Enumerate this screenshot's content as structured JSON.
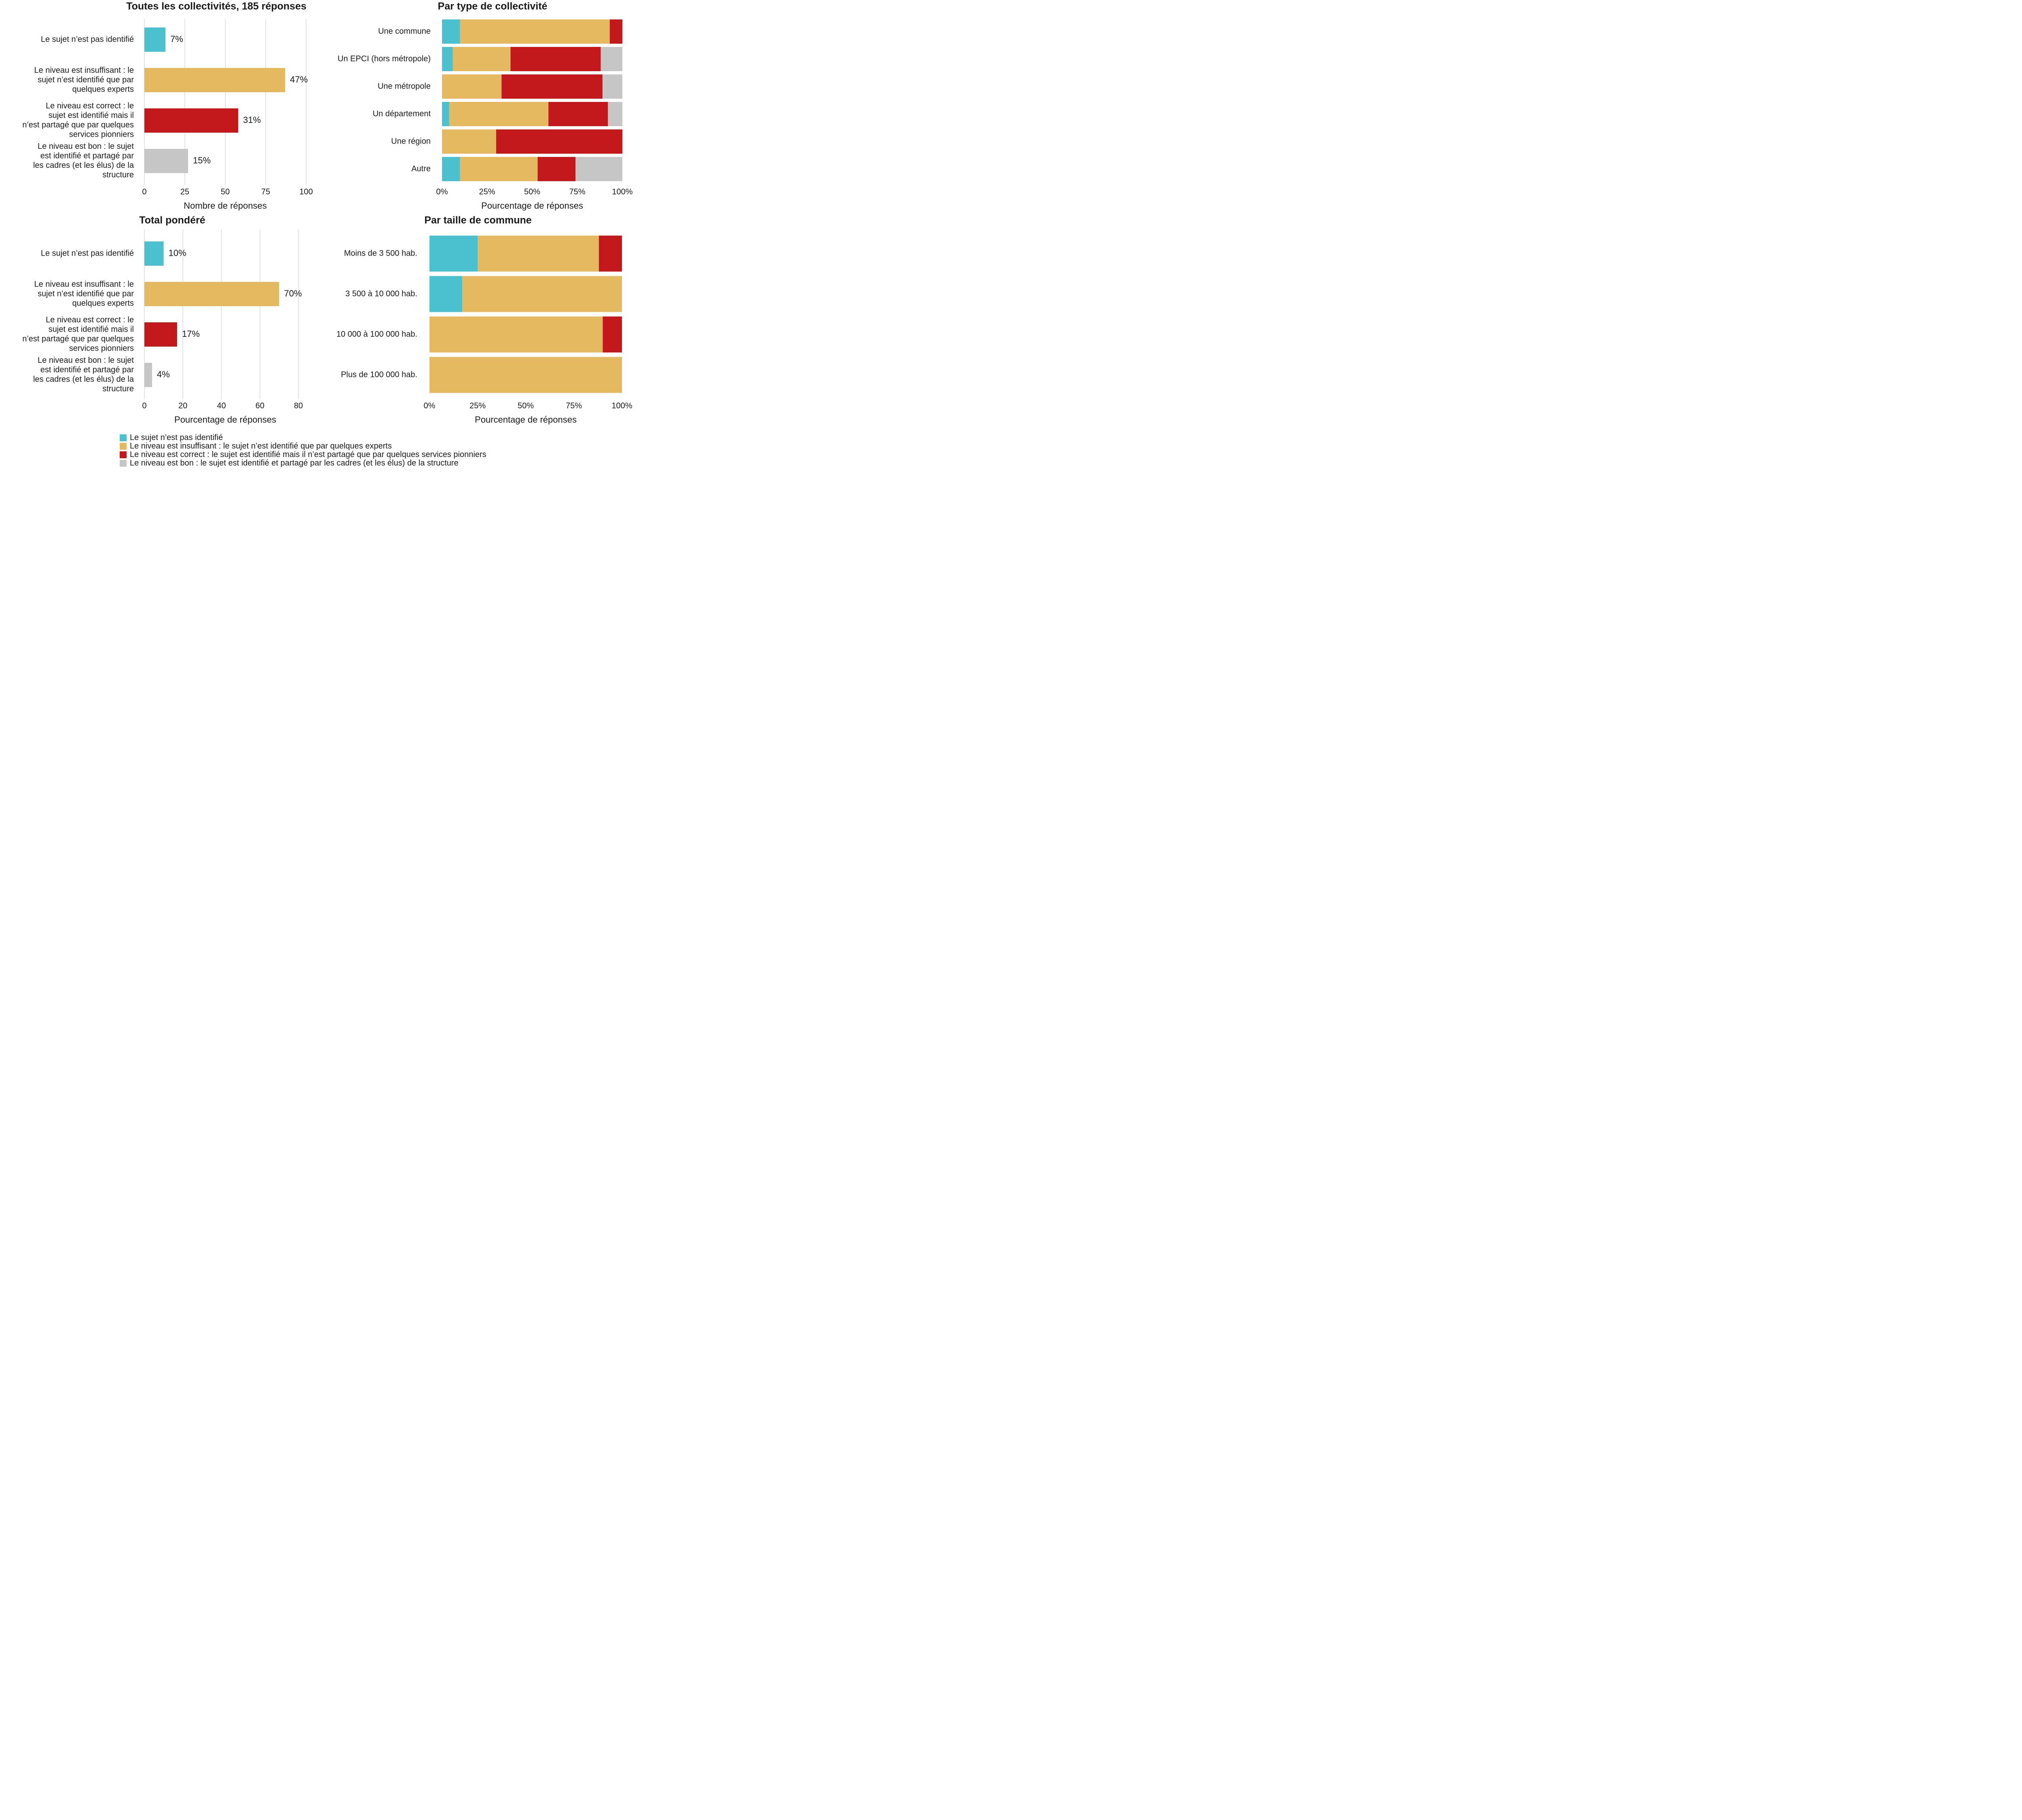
{
  "colors": {
    "pas_identifie": "#4BC1CF",
    "insuffisant": "#E4B960",
    "correct": "#C4191C",
    "bon": "#C6C6C6",
    "grid": "#d0d0d0",
    "text": "#1a1a1a"
  },
  "legend": {
    "items": [
      {
        "key": "pas_identifie",
        "label": "Le sujet n’est pas identifié"
      },
      {
        "key": "insuffisant",
        "label": "Le niveau est insuffisant : le sujet n’est identifié que par quelques experts"
      },
      {
        "key": "correct",
        "label": "Le niveau est correct : le sujet est identifié mais il n’est partagé que par quelques services pionniers"
      },
      {
        "key": "bon",
        "label": "Le niveau est bon : le sujet est identifié et partagé par les cadres (et les élus) de la structure"
      }
    ]
  },
  "chart_data": [
    {
      "id": "toutes",
      "type": "bar",
      "orientation": "horizontal",
      "title": "Toutes les collectivités, 185 réponses",
      "xlabel": "Nombre de réponses",
      "ylabel": "",
      "xlim": [
        0,
        105
      ],
      "xticks": [
        0,
        25,
        50,
        75,
        100
      ],
      "tick_labels": [
        "0",
        "25",
        "50",
        "75",
        "100"
      ],
      "grid": "vertical",
      "categories": [
        [
          "Le sujet n’est pas identifié"
        ],
        [
          "Le niveau est insuffisant : le",
          "sujet n’est identifié que par",
          "quelques experts"
        ],
        [
          "Le niveau est correct : le",
          "sujet est identifié mais il",
          "n’est partagé que par quelques",
          "services pionniers"
        ],
        [
          "Le niveau est bon : le sujet",
          "est identifié et partagé par",
          "les cadres (et les élus) de la",
          "structure"
        ]
      ],
      "keys": [
        "pas_identifie",
        "insuffisant",
        "correct",
        "bon"
      ],
      "values": [
        13,
        87,
        58,
        27
      ],
      "data_labels": [
        "7%",
        "47%",
        "31%",
        "15%"
      ]
    },
    {
      "id": "type",
      "type": "bar",
      "orientation": "horizontal",
      "stacked": true,
      "title": "Par type de collectivité",
      "xlabel": "Pourcentage de réponses",
      "ylabel": "",
      "xlim": [
        0,
        100
      ],
      "xticks": [
        0,
        25,
        50,
        75,
        100
      ],
      "tick_labels": [
        "0%",
        "25%",
        "50%",
        "75%",
        "100%"
      ],
      "grid": "none",
      "categories": [
        "Une commune",
        "Un EPCI (hors métropole)",
        "Une métropole",
        "Un département",
        "Une région",
        "Autre"
      ],
      "series": [
        {
          "name": "Le sujet n’est pas identifié",
          "key": "pas_identifie",
          "values": [
            10,
            6,
            0,
            4,
            0,
            10
          ]
        },
        {
          "name": "Le niveau est insuffisant",
          "key": "insuffisant",
          "values": [
            83,
            32,
            33,
            55,
            30,
            43
          ]
        },
        {
          "name": "Le niveau est correct",
          "key": "correct",
          "values": [
            7,
            50,
            56,
            33,
            70,
            21
          ]
        },
        {
          "name": "Le niveau est bon",
          "key": "bon",
          "values": [
            0,
            12,
            11,
            8,
            0,
            26
          ]
        }
      ]
    },
    {
      "id": "pondere",
      "type": "bar",
      "orientation": "horizontal",
      "title": "Total pondéré",
      "xlabel": "Pourcentage de réponses",
      "ylabel": "",
      "xlim": [
        0,
        84
      ],
      "xticks": [
        0,
        20,
        40,
        60,
        80
      ],
      "tick_labels": [
        "0",
        "20",
        "40",
        "60",
        "80"
      ],
      "grid": "vertical",
      "categories": [
        [
          "Le sujet n’est pas identifié"
        ],
        [
          "Le niveau est insuffisant : le",
          "sujet n’est identifié que par",
          "quelques experts"
        ],
        [
          "Le niveau est correct : le",
          "sujet est identifié mais il",
          "n’est partagé que par quelques",
          "services pionniers"
        ],
        [
          "Le niveau est bon : le sujet",
          "est identifié et partagé par",
          "les cadres (et les élus) de la",
          "structure"
        ]
      ],
      "keys": [
        "pas_identifie",
        "insuffisant",
        "correct",
        "bon"
      ],
      "values": [
        10,
        70,
        17,
        4
      ],
      "data_labels": [
        "10%",
        "70%",
        "17%",
        "4%"
      ]
    },
    {
      "id": "taille",
      "type": "bar",
      "orientation": "horizontal",
      "stacked": true,
      "title": "Par taille de commune",
      "xlabel": "Pourcentage de réponses",
      "ylabel": "",
      "xlim": [
        0,
        100
      ],
      "xticks": [
        0,
        25,
        50,
        75,
        100
      ],
      "tick_labels": [
        "0%",
        "25%",
        "50%",
        "75%",
        "100%"
      ],
      "grid": "none",
      "categories": [
        "Moins de 3 500 hab.",
        "3 500 à 10 000 hab.",
        "10 000 à 100 000 hab.",
        "Plus de 100 000 hab."
      ],
      "series": [
        {
          "name": "Le sujet n’est pas identifié",
          "key": "pas_identifie",
          "values": [
            25,
            17,
            0,
            0
          ]
        },
        {
          "name": "Le niveau est insuffisant",
          "key": "insuffisant",
          "values": [
            63,
            83,
            90,
            100
          ]
        },
        {
          "name": "Le niveau est correct",
          "key": "correct",
          "values": [
            12,
            0,
            10,
            0
          ]
        },
        {
          "name": "Le niveau est bon",
          "key": "bon",
          "values": [
            0,
            0,
            0,
            0
          ]
        }
      ]
    }
  ]
}
